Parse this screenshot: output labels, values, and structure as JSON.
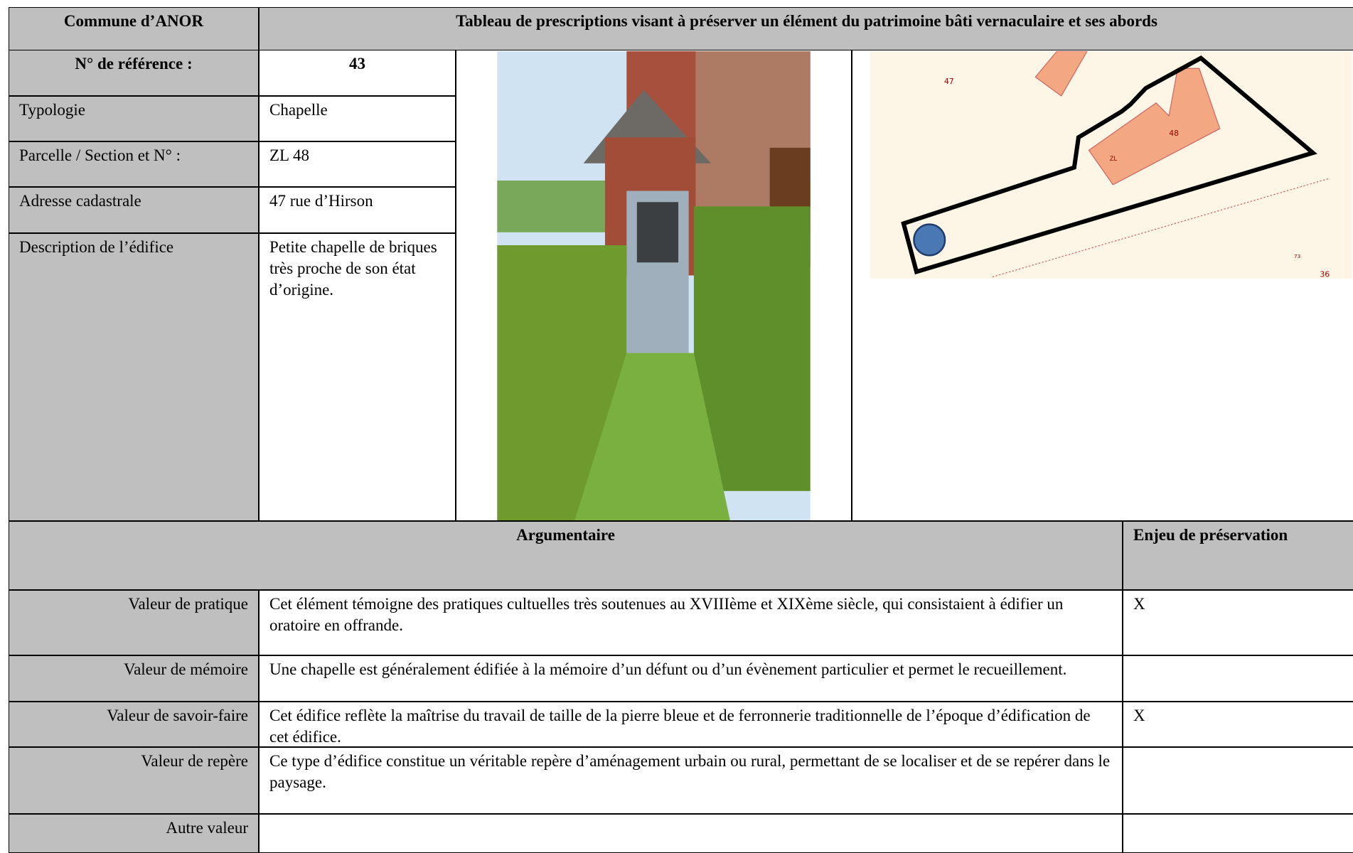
{
  "header": {
    "commune": "Commune d’ANOR",
    "title": "Tableau de prescriptions visant à préserver un élément du patrimoine bâti vernaculaire et ses abords"
  },
  "info": {
    "reference_label": "N° de référence :",
    "reference": "43",
    "rows": [
      [
        "Typologie",
        "Chapelle"
      ],
      [
        "Parcelle / Section et N° :",
        "ZL 48"
      ],
      [
        "Adresse cadastrale",
        "47 rue d’Hirson"
      ],
      [
        "Description de l’édifice",
        "Petite chapelle de briques très proche de son état d’origine."
      ]
    ]
  },
  "map": {
    "labels": [
      "47",
      "48",
      "ZL",
      "73",
      "36"
    ]
  },
  "argumentaire": {
    "header": "Argumentaire",
    "enjeu_header": "Enjeu de préservation",
    "rows": [
      {
        "label": "Valeur de pratique",
        "text": "Cet élément témoigne des pratiques cultuelles très soutenues au XVIIIème et XIXème siècle, qui consistaient à édifier un oratoire en offrande.",
        "enjeu": "X"
      },
      {
        "label": "Valeur de mémoire",
        "text": "Une chapelle est généralement édifiée à la mémoire d’un défunt ou d’un évènement particulier et permet le recueillement."
      },
      {
        "label": "Valeur de savoir-faire",
        "text": "Cet édifice reflète la maîtrise du travail de taille de la pierre bleue et de ferronnerie traditionnelle de l’époque d’édification de cet édifice.",
        "enjeu": "X"
      },
      {
        "label": "Valeur de repère",
        "text": "Ce type d’édifice constitue un véritable repère d’aménagement urbain ou rural, permettant de se localiser et de se repérer dans le paysage."
      },
      {
        "label": "Autre valeur"
      }
    ]
  }
}
